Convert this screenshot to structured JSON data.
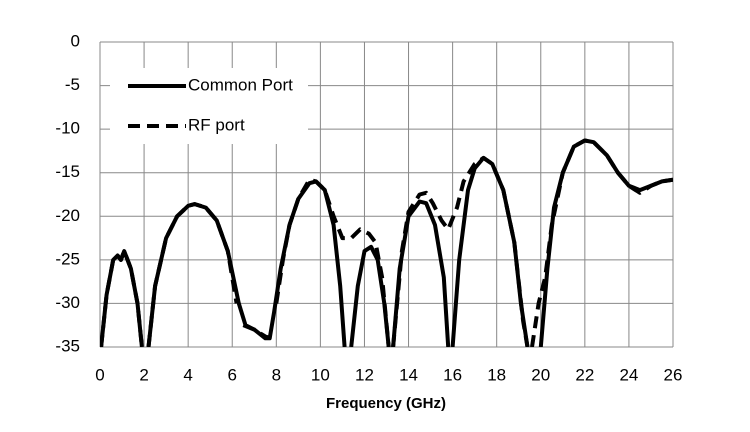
{
  "chart_data": {
    "type": "line",
    "xlabel": "Frequency (GHz)",
    "xlim": [
      0,
      26
    ],
    "ylim": [
      -35,
      0
    ],
    "xticks": [
      0,
      2,
      4,
      6,
      8,
      10,
      12,
      14,
      16,
      18,
      20,
      22,
      24,
      26
    ],
    "yticks": [
      0,
      -5,
      -10,
      -15,
      -20,
      -25,
      -30,
      -35
    ],
    "grid": true,
    "legend": "upper left",
    "series": [
      {
        "name": "Common Port",
        "color": "#000000",
        "dash": "solid",
        "x": [
          0.05,
          0.3,
          0.6,
          0.8,
          0.95,
          1.1,
          1.4,
          1.7,
          1.9,
          null,
          2.2,
          2.5,
          3.0,
          3.5,
          4.0,
          4.3,
          4.8,
          5.3,
          5.8,
          6.3,
          6.6,
          7.0,
          7.5,
          7.7,
          7.9,
          8.2,
          8.6,
          9.0,
          9.5,
          9.8,
          10.2,
          10.6,
          10.9,
          11.1,
          null,
          11.4,
          11.7,
          12.0,
          12.3,
          12.6,
          12.9,
          13.1,
          null,
          13.3,
          13.6,
          14.0,
          14.5,
          14.8,
          15.2,
          15.6,
          15.8,
          null,
          16.0,
          16.3,
          16.7,
          17.0,
          17.4,
          17.8,
          18.3,
          18.8,
          19.1,
          19.4,
          null,
          20.0,
          20.3,
          20.6,
          21.0,
          21.5,
          22.0,
          22.4,
          23.0,
          23.5,
          24.0,
          24.5,
          25.0,
          25.5,
          26.0
        ],
        "values": [
          -35,
          -29,
          -25,
          -24.5,
          -25,
          -24,
          -26,
          -30,
          -35,
          null,
          -35,
          -28,
          -22.5,
          -20,
          -18.8,
          -18.6,
          -19,
          -20.5,
          -24,
          -30,
          -32.5,
          -33,
          -34,
          -34,
          -31,
          -26,
          -21,
          -18,
          -16.2,
          -16,
          -17,
          -21,
          -28,
          -35,
          null,
          -35,
          -28,
          -24,
          -23.5,
          -25,
          -30,
          -35,
          null,
          -35,
          -26,
          -20,
          -18.3,
          -18.5,
          -21,
          -27,
          -35,
          null,
          -35,
          -25,
          -17,
          -14.5,
          -13.3,
          -14,
          -17,
          -23,
          -30,
          -35,
          null,
          -35,
          -26,
          -19,
          -15,
          -12,
          -11.3,
          -11.5,
          -13,
          -15,
          -16.5,
          -17,
          -16.5,
          -16,
          -15.8
        ]
      },
      {
        "name": "RF port",
        "color": "#000000",
        "dash": "dashed",
        "x": [
          0.05,
          0.3,
          0.6,
          0.8,
          0.95,
          1.1,
          1.4,
          1.7,
          1.9,
          null,
          2.2,
          2.5,
          3.0,
          3.5,
          4.0,
          4.3,
          4.8,
          5.3,
          5.8,
          6.2,
          null,
          6.5,
          7.0,
          7.5,
          7.8,
          null,
          8.0,
          8.3,
          8.6,
          9.0,
          9.5,
          9.8,
          10.2,
          10.6,
          11.0,
          11.4,
          11.8,
          12.2,
          12.5,
          12.8,
          13.1,
          null,
          13.3,
          13.7,
          14.0,
          14.5,
          14.8,
          15.1,
          15.5,
          15.8,
          16.2,
          16.5,
          17.0,
          17.4,
          17.8,
          18.3,
          18.8,
          19.2,
          19.4,
          null,
          19.6,
          19.9,
          20.2,
          20.5,
          21.0,
          21.5,
          22.0,
          22.4,
          23.0,
          23.5,
          24.0,
          24.5,
          25.0,
          25.5,
          26.0
        ],
        "values": [
          -35,
          -29,
          -25,
          -24.5,
          -25,
          -24,
          -26,
          -30,
          -35,
          null,
          -35,
          -28,
          -22.5,
          -20,
          -18.8,
          -18.6,
          -19,
          -20.5,
          -24,
          -30,
          null,
          -32.5,
          -33,
          -33.8,
          -34,
          null,
          -30,
          -25,
          -21,
          -18,
          -15.8,
          -16,
          -17,
          -20,
          -22.5,
          -22.5,
          -21.5,
          -22,
          -23,
          -27,
          -35,
          null,
          -35,
          -24,
          -19.5,
          -17.5,
          -17.3,
          -18.5,
          -20.5,
          -21.5,
          -19,
          -16,
          -14,
          -13.3,
          -14,
          -17,
          -23,
          -32,
          -35,
          null,
          -35,
          -30,
          -27,
          -21,
          -15,
          -12,
          -11.3,
          -11.5,
          -13,
          -15,
          -16.5,
          -17.3,
          -16.5,
          -16,
          -15.8
        ]
      }
    ]
  }
}
